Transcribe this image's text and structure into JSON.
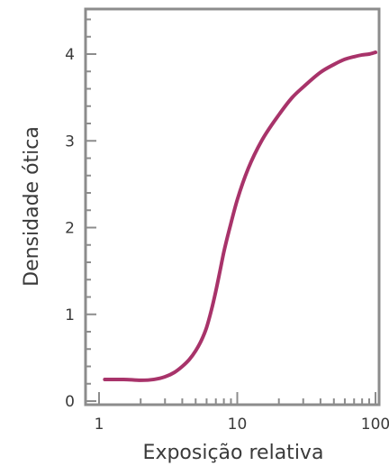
{
  "chart_data": {
    "type": "line",
    "title": "",
    "xlabel": "Exposição relativa",
    "ylabel": "Densidade ótica",
    "xscale": "log",
    "xlim": [
      1,
      100
    ],
    "ylim": [
      0,
      4.5
    ],
    "xticks": [
      {
        "value": 1,
        "label": "1"
      },
      {
        "value": 10,
        "label": "10"
      },
      {
        "value": 100,
        "label": "100"
      }
    ],
    "yticks": [
      {
        "value": 0,
        "label": "0"
      },
      {
        "value": 1,
        "label": "1"
      },
      {
        "value": 2,
        "label": "2"
      },
      {
        "value": 3,
        "label": "3"
      },
      {
        "value": 4,
        "label": "4"
      }
    ],
    "minor_y_step": 0.2,
    "minor_x_per_decade": [
      2,
      3,
      4,
      5,
      6,
      7,
      8,
      9
    ],
    "series": [
      {
        "color": "#a8336a",
        "x": [
          1.1,
          1.5,
          2.0,
          2.5,
          3.0,
          3.5,
          4.0,
          4.5,
          5.0,
          5.5,
          6.0,
          6.5,
          7.0,
          7.5,
          8.0,
          9.0,
          10,
          12,
          15,
          20,
          25,
          30,
          40,
          50,
          60,
          70,
          80,
          90,
          100
        ],
        "values": [
          0.25,
          0.25,
          0.24,
          0.25,
          0.28,
          0.33,
          0.4,
          0.48,
          0.58,
          0.7,
          0.85,
          1.05,
          1.27,
          1.5,
          1.72,
          2.05,
          2.32,
          2.68,
          3.0,
          3.3,
          3.5,
          3.62,
          3.79,
          3.88,
          3.94,
          3.97,
          3.99,
          4.0,
          4.02
        ]
      }
    ]
  }
}
